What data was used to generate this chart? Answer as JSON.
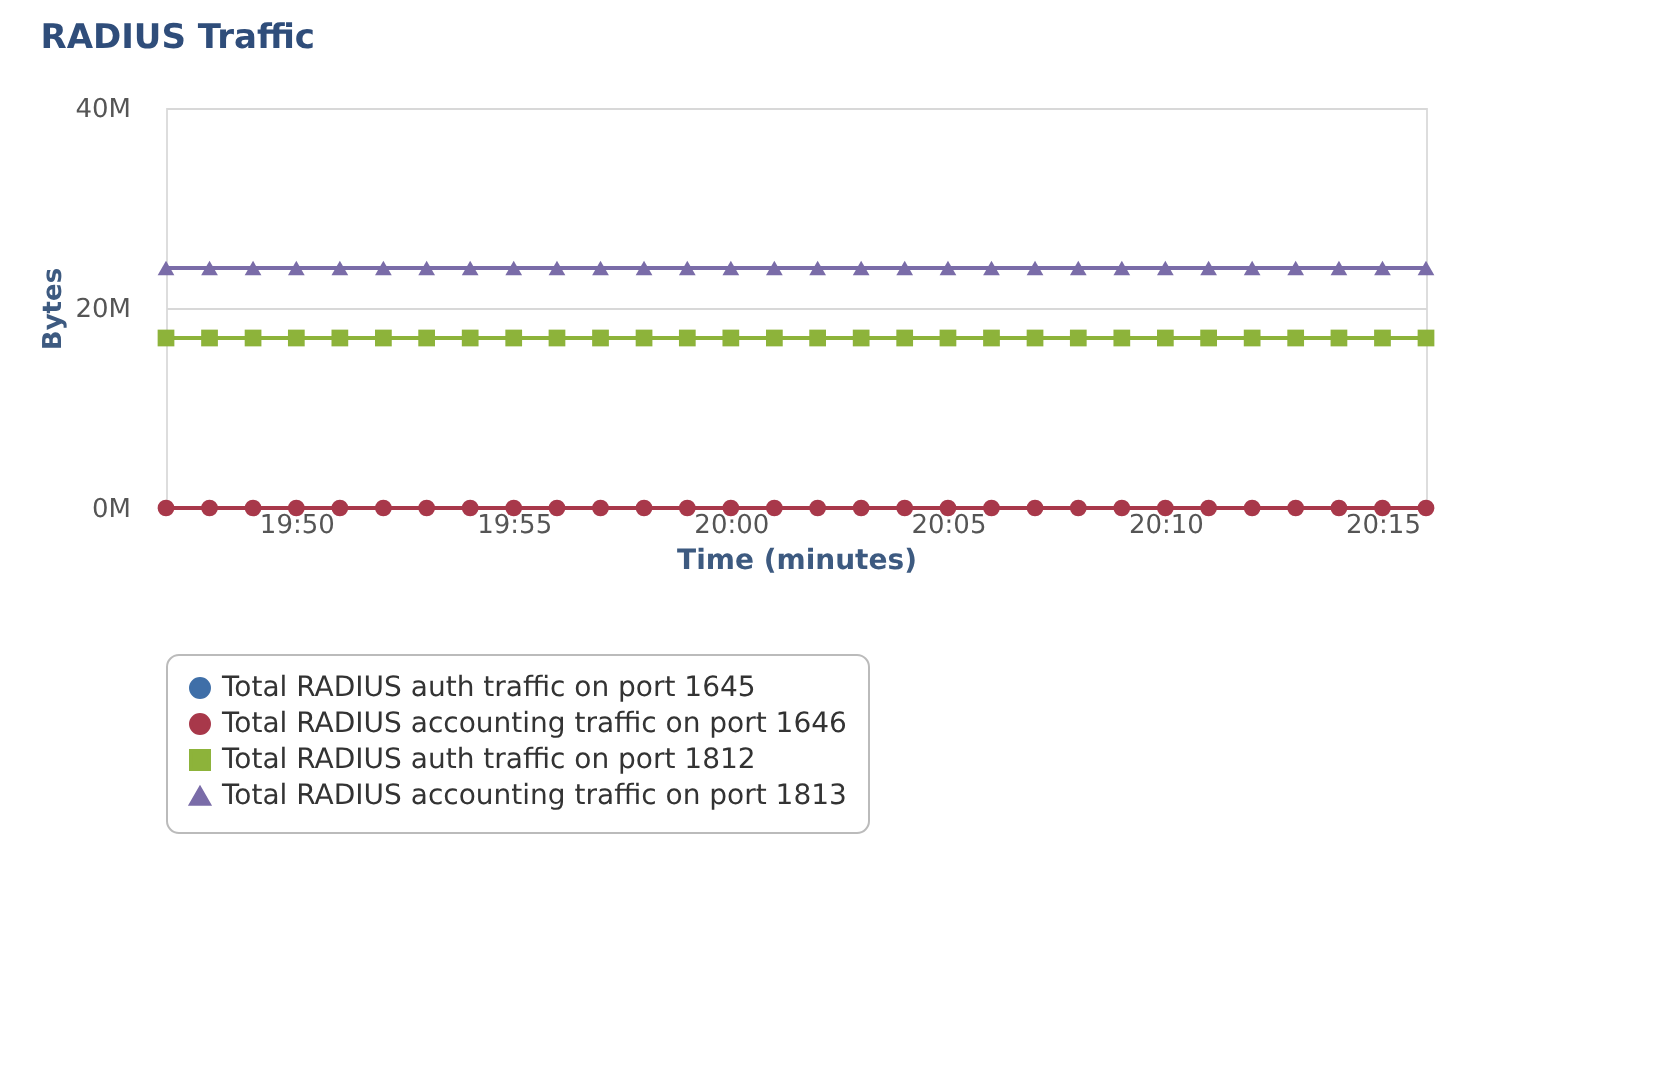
{
  "chart_data": {
    "type": "line",
    "title": "RADIUS Traffic",
    "xlabel": "Time (minutes)",
    "ylabel": "Bytes",
    "x": [
      19.7833,
      19.8,
      19.8167,
      19.8333,
      19.85,
      19.8667,
      19.8833,
      19.9,
      19.9167,
      19.9333,
      19.95,
      19.9667,
      19.9833,
      20.0,
      20.0167,
      20.0333,
      20.05,
      20.0667,
      20.0833,
      20.1,
      20.1167,
      20.1333,
      20.15,
      20.1667,
      20.1833,
      20.2,
      20.2167,
      20.2333,
      20.25,
      20.2667
    ],
    "series": [
      {
        "name": "Total RADIUS auth traffic on port 1645",
        "color": "#3f6fa8",
        "marker": "circle",
        "values": [
          null,
          null,
          null,
          null,
          null,
          null,
          null,
          null,
          null,
          null,
          null,
          null,
          null,
          null,
          null,
          null,
          null,
          null,
          null,
          null,
          null,
          null,
          null,
          null,
          null,
          null,
          null,
          null,
          null,
          null
        ]
      },
      {
        "name": "Total RADIUS accounting traffic on port 1646",
        "color": "#a8384a",
        "marker": "circle",
        "values": [
          0,
          0,
          0,
          0,
          0,
          0,
          0,
          0,
          0,
          0,
          0,
          0,
          0,
          0,
          0,
          0,
          0,
          0,
          0,
          0,
          0,
          0,
          0,
          0,
          0,
          0,
          0,
          0,
          0,
          0
        ]
      },
      {
        "name": "Total RADIUS auth traffic on port 1812",
        "color": "#8db33a",
        "marker": "square",
        "values": [
          17,
          17,
          17,
          17,
          17,
          17,
          17,
          17,
          17,
          17,
          17,
          17,
          17,
          17,
          17,
          17,
          17,
          17,
          17,
          17,
          17,
          17,
          17,
          17,
          17,
          17,
          17,
          17,
          17,
          17
        ]
      },
      {
        "name": "Total RADIUS accounting traffic on port 1813",
        "color": "#7a6ca8",
        "marker": "triangle",
        "values": [
          24,
          24,
          24,
          24,
          24,
          24,
          24,
          24,
          24,
          24,
          24,
          24,
          24,
          24,
          24,
          24,
          24,
          24,
          24,
          24,
          24,
          24,
          24,
          24,
          24,
          24,
          24,
          24,
          24,
          24
        ]
      }
    ],
    "xlim": [
      19.7833,
      20.2667
    ],
    "xticks": [
      {
        "value": 19.8333,
        "label": "19:50"
      },
      {
        "value": 19.9167,
        "label": "19:55"
      },
      {
        "value": 20.0,
        "label": "20:00"
      },
      {
        "value": 20.0833,
        "label": "20:05"
      },
      {
        "value": 20.1667,
        "label": "20:10"
      },
      {
        "value": 20.25,
        "label": "20:15"
      }
    ],
    "ylim": [
      0,
      40
    ],
    "yticks": [
      {
        "value": 0,
        "label": "0M"
      },
      {
        "value": 20,
        "label": "20M"
      },
      {
        "value": 40,
        "label": "40M"
      }
    ],
    "grid": "y",
    "legend": "bottom",
    "line_style": "solid"
  }
}
